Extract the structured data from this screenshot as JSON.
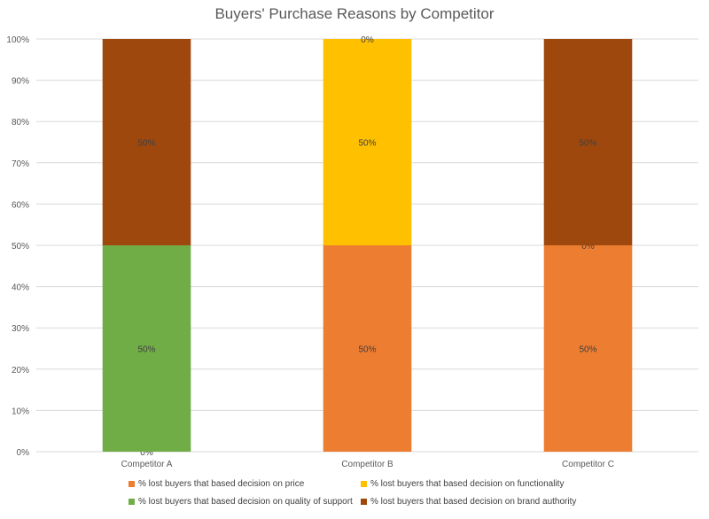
{
  "chart_data": {
    "type": "bar",
    "stacked": true,
    "percent": true,
    "title": "Buyers' Purchase Reasons by Competitor",
    "xlabel": "",
    "ylabel": "",
    "ylim": [
      0,
      100
    ],
    "ytick_labels": [
      "0%",
      "10%",
      "20%",
      "30%",
      "40%",
      "50%",
      "60%",
      "70%",
      "80%",
      "90%",
      "100%"
    ],
    "grid": true,
    "legend_position": "bottom",
    "categories": [
      "Competitor A",
      "Competitor B",
      "Competitor C"
    ],
    "series": [
      {
        "name": "% lost buyers that based decision on price",
        "color": "#ED7D31",
        "values": [
          0,
          50,
          50
        ],
        "labels": [
          "0%",
          "50%",
          "50%"
        ]
      },
      {
        "name": "% lost buyers that based decision on quality of support",
        "color": "#70AD47",
        "values": [
          50,
          null,
          0
        ],
        "labels": [
          "50%",
          null,
          "0%"
        ]
      },
      {
        "name": "% lost buyers that based decision on functionality",
        "color": "#FFC000",
        "values": [
          null,
          50,
          null
        ],
        "labels": [
          null,
          "50%",
          null
        ]
      },
      {
        "name": "% lost buyers that based decision on brand authority",
        "color": "#9E480E",
        "values": [
          50,
          0,
          50
        ],
        "labels": [
          "50%",
          "0%",
          "50%"
        ]
      }
    ],
    "legend_order": [
      0,
      2,
      1,
      3
    ]
  }
}
